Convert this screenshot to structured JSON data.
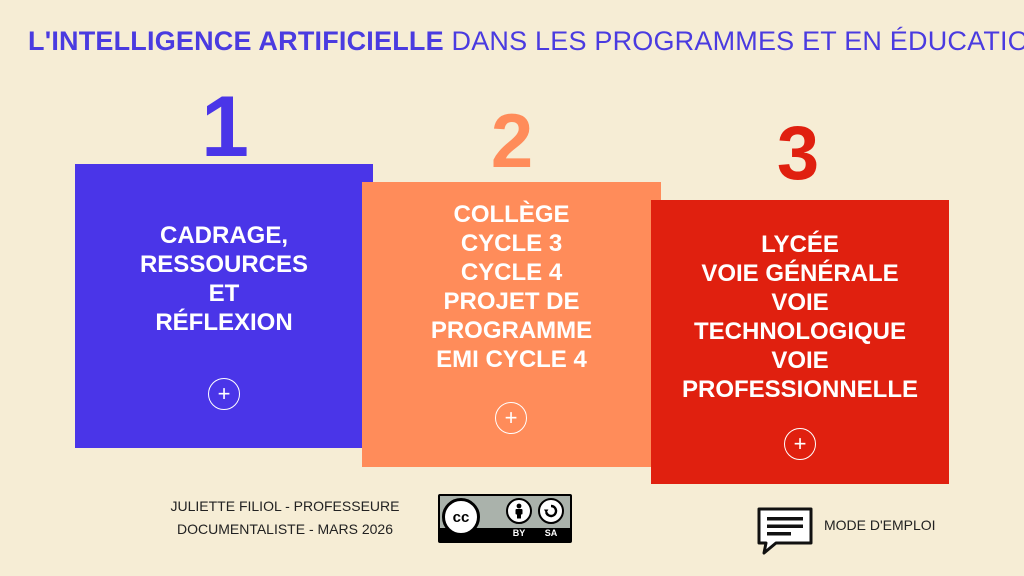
{
  "title": {
    "bold": "L'INTELLIGENCE ARTIFICIELLE",
    "rest": "DANS LES PROGRAMMES ET EN ÉDUCATION"
  },
  "cards": [
    {
      "number": "1",
      "text": "CADRAGE,\nRESSOURCES\nET\nRÉFLEXION",
      "color": "#4a35e8",
      "number_color": "#4a35e8",
      "plus_icon": "plus-circle-icon"
    },
    {
      "number": "2",
      "text": "COLLÈGE\nCYCLE 3\nCYCLE 4\nPROJET DE\nPROGRAMME\nEMI CYCLE 4",
      "color": "#ff8c5a",
      "number_color": "#ff8c5a",
      "plus_icon": "plus-circle-icon"
    },
    {
      "number": "3",
      "text": "LYCÉE\nVOIE GÉNÉRALE\nVOIE\nTECHNOLOGIQUE\nVOIE\nPROFESSIONNELLE",
      "color": "#e0200f",
      "number_color": "#e0200f",
      "plus_icon": "plus-circle-icon"
    }
  ],
  "credit": "JULIETTE FILIOL - PROFESSEURE\nDOCUMENTALISTE - MARS 2026",
  "license": {
    "cc": "cc",
    "by": "BY",
    "sa": "SA"
  },
  "manual": {
    "label": "MODE D'EMPLOI",
    "icon": "speech-bubble-icon"
  },
  "colors": {
    "background": "#f6edd5",
    "title": "#4a3be0"
  }
}
